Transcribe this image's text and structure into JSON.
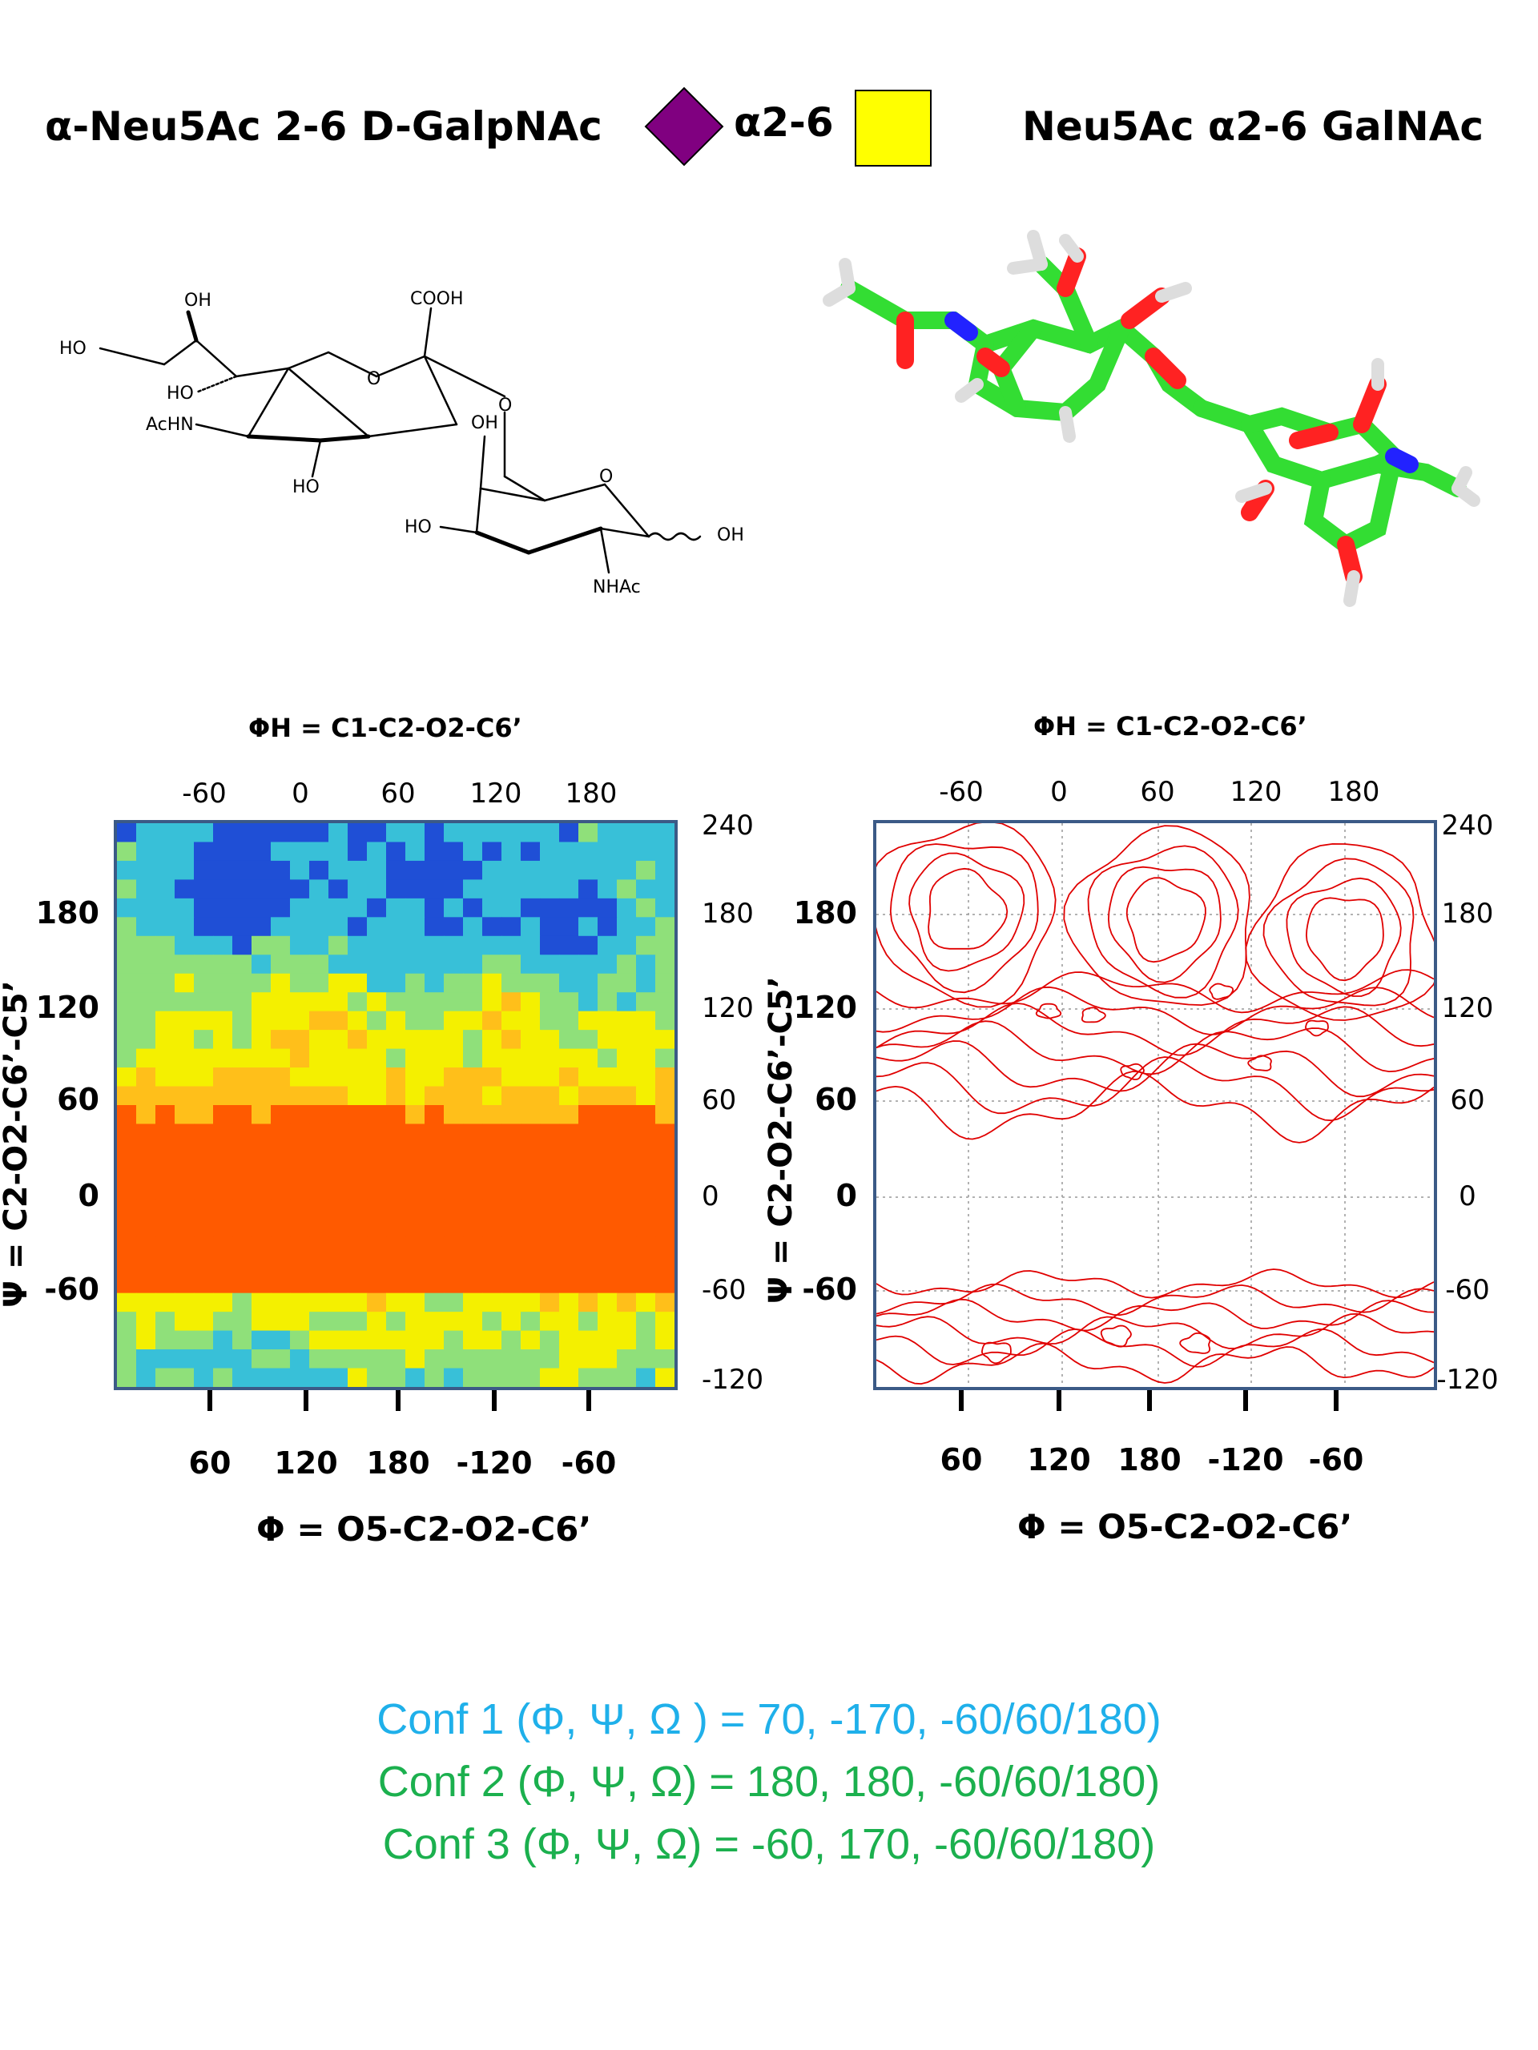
{
  "header": {
    "left_title": "α-Neu5Ac 2-6 D-GalpNAc",
    "linkage_label": "α2-6",
    "right_title": "Neu5Ac α2-6 GalNAc",
    "colors": {
      "neu5ac_symbol": "#800080",
      "galnac_symbol": "#ffff00"
    },
    "icons": [
      "neu5ac-diamond-icon",
      "galnac-square-icon"
    ]
  },
  "structure_labels": {
    "cooh": "COOH",
    "oh_top": "OH",
    "ho_left": "HO",
    "ho_ring": "HO",
    "achn": "AcHN",
    "ho_bottom": "HO",
    "o_ring1": "O",
    "o_glyco": "O",
    "oh_gal": "OH",
    "o_ring2": "O",
    "ho_gal": "HO",
    "oh_anomeric": "OH",
    "nhac": "NHAc"
  },
  "chart_data": [
    {
      "type": "heatmap",
      "title": "",
      "top_axis_label": "ΦH = C1-C2-O2-C6’",
      "top_ticks": [
        "-60",
        "0",
        "60",
        "120",
        "180"
      ],
      "xlabel": "Φ = O5-C2-O2-C6’",
      "x_ticks": [
        "60",
        "120",
        "180",
        "-120",
        "-60"
      ],
      "ylabel": "Ψ = C2-O2-C6’-C5’",
      "y_ticks_left": [
        "180",
        "120",
        "60",
        "0",
        "-60"
      ],
      "y_ticks_right": [
        "240",
        "180",
        "120",
        "60",
        "0",
        "-60",
        "-120"
      ],
      "ylim": [
        -120,
        240
      ],
      "colormap": [
        "#1f4fd6",
        "#38c0d8",
        "#8fe07a",
        "#f4f000",
        "#ffbf1a",
        "#ff5a00"
      ]
    },
    {
      "type": "contour",
      "title": "",
      "top_axis_label": "ΦH = C1-C2-O2-C6’",
      "top_ticks": [
        "-60",
        "0",
        "60",
        "120",
        "180"
      ],
      "xlabel": "Φ = O5-C2-O2-C6’",
      "x_ticks": [
        "60",
        "120",
        "180",
        "-120",
        "-60"
      ],
      "ylabel": "Ψ = C2-O2-C6’-C5’",
      "y_ticks_left": [
        "180",
        "120",
        "60",
        "0",
        "-60"
      ],
      "y_ticks_right": [
        "240",
        "180",
        "120",
        "60",
        "0",
        "-60",
        "-120"
      ],
      "ylim": [
        -120,
        240
      ],
      "grid": true,
      "line_color": "#e00000"
    }
  ],
  "conformers": [
    {
      "text": "Conf 1 (Φ, Ψ, Ω ) = 70, -170, -60/60/180)",
      "color": "#1fb0ea"
    },
    {
      "text": "Conf 2 (Φ, Ψ, Ω) =  180, 180, -60/60/180)",
      "color": "#1bb04e"
    },
    {
      "text": "Conf 3 (Φ, Ψ, Ω) =  -60,  170, -60/60/180)",
      "color": "#1bb04e"
    }
  ]
}
